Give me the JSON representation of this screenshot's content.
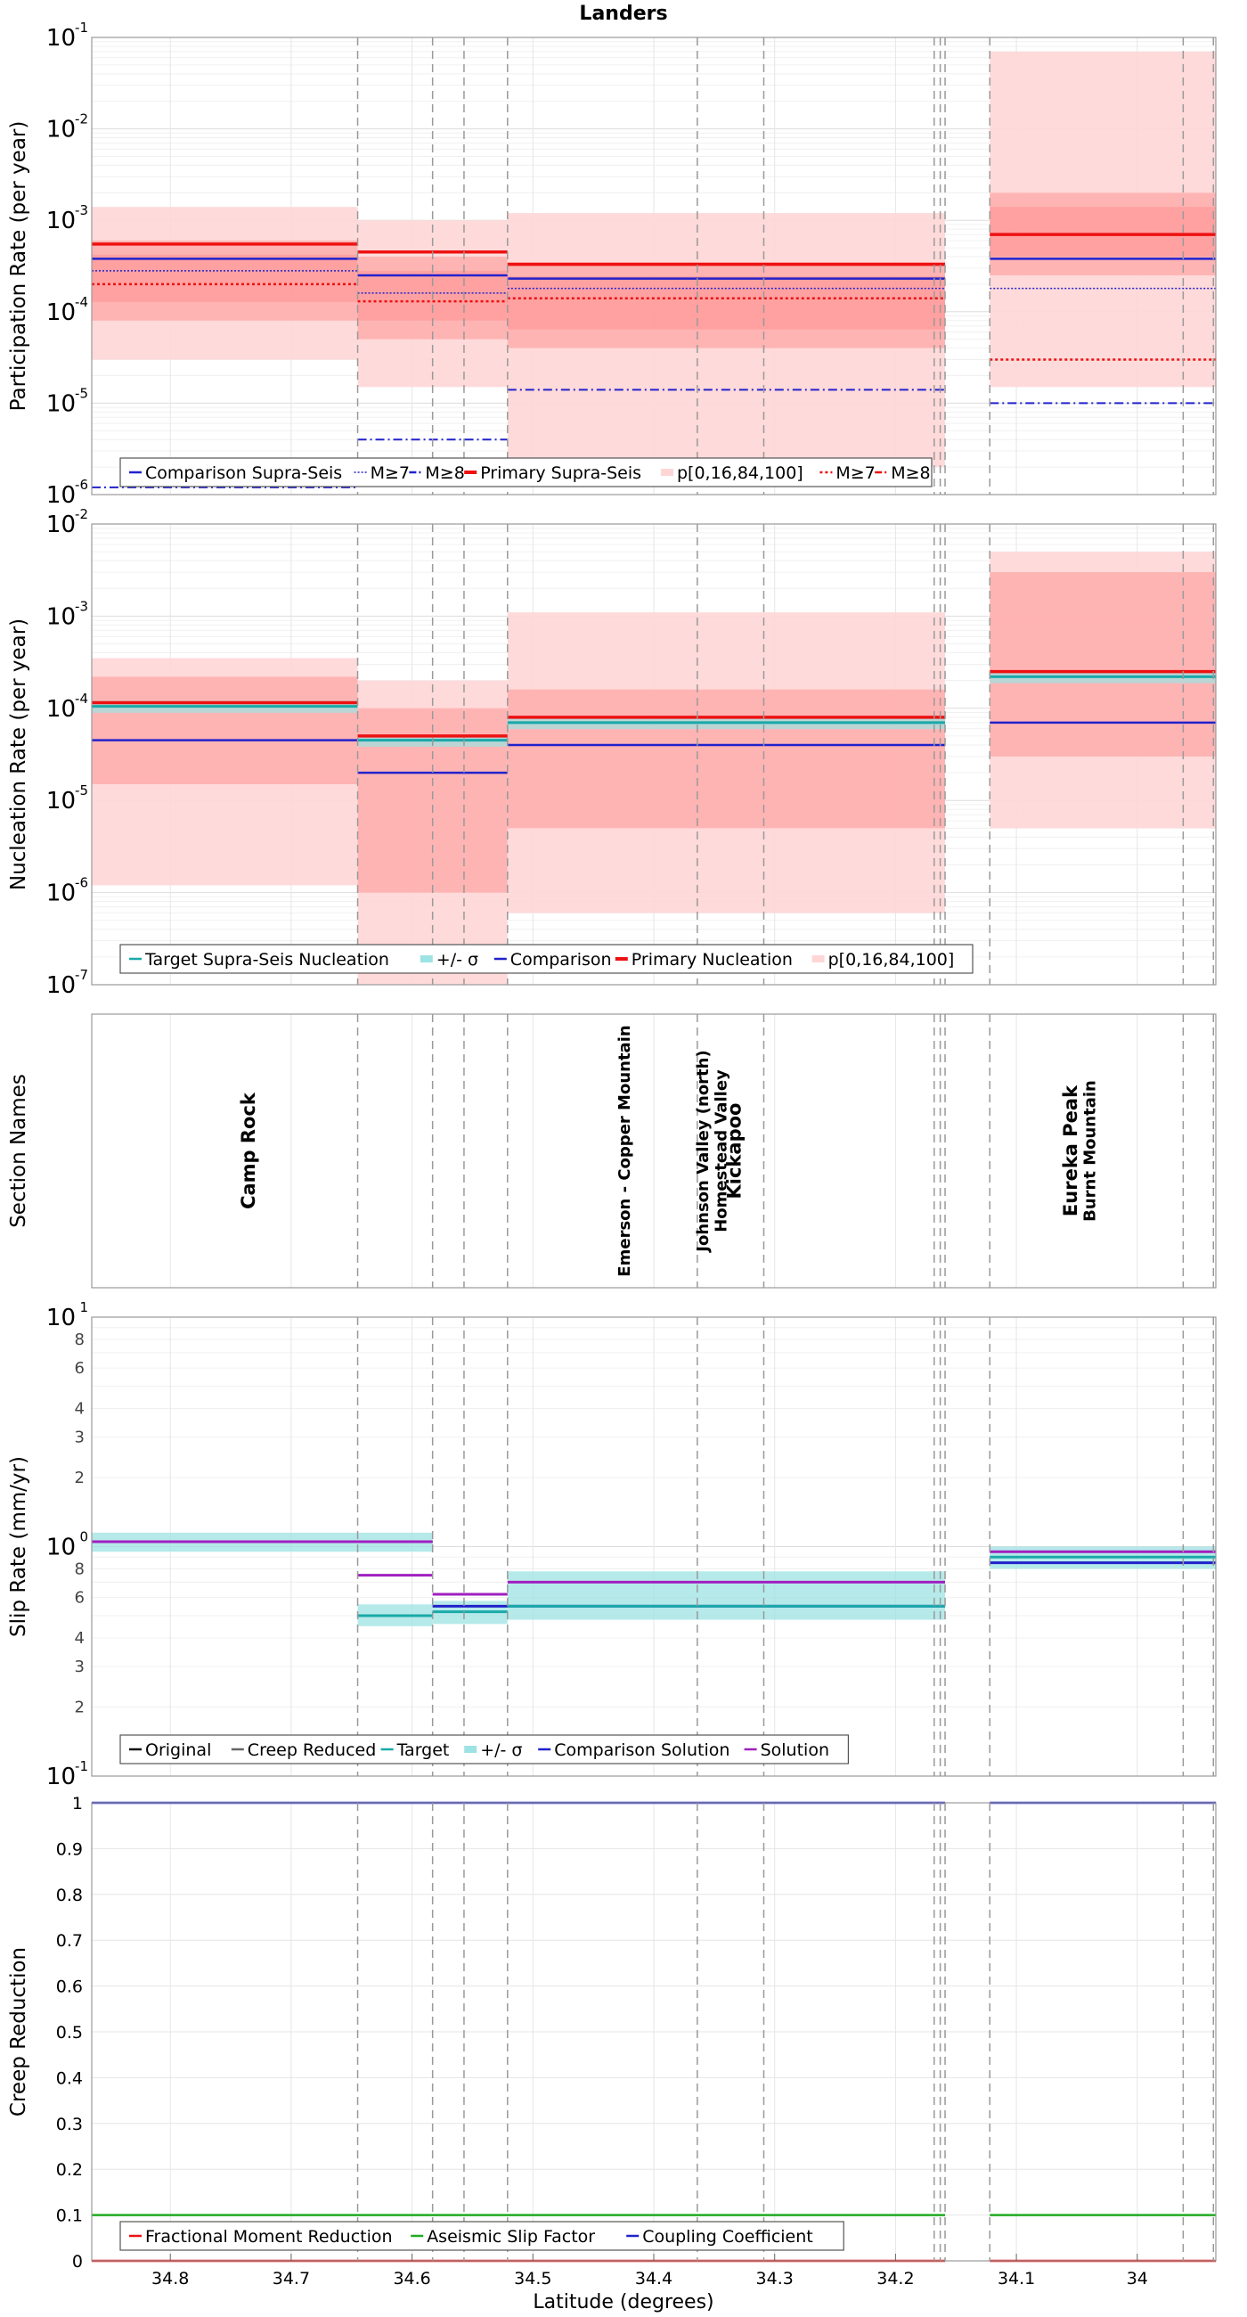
{
  "title": "Landers",
  "x_axis": {
    "label": "Latitude (degrees)",
    "range": [
      34.865,
      33.935
    ],
    "ticks": [
      "34.8",
      "34.7",
      "34.6",
      "34.5",
      "34.4",
      "34.3",
      "34.2",
      "34.1",
      "34"
    ],
    "tick_values": [
      34.8,
      34.7,
      34.6,
      34.5,
      34.4,
      34.3,
      34.2,
      34.1,
      34.0
    ]
  },
  "section_boundaries": [
    34.645,
    34.583,
    34.557,
    34.521,
    34.364,
    34.309,
    34.168,
    34.163,
    34.159,
    34.122,
    33.962,
    33.937
  ],
  "section_names": [
    {
      "name": "Camp Rock",
      "lat": 34.73
    },
    {
      "name": "Emerson - Copper Mountain",
      "lat": 34.42
    },
    {
      "name": "Johnson Valley (north)",
      "lat": 34.355
    },
    {
      "name": "Homestead Valley",
      "lat": 34.34
    },
    {
      "name": "Kickapoo",
      "lat": 34.328
    },
    {
      "name": "Eureka Peak",
      "lat": 34.05
    },
    {
      "name": "Burnt Mountain",
      "lat": 34.035
    }
  ],
  "panel_labels": {
    "participation": "Participation Rate (per year)",
    "nucleation": "Nucleation Rate (per year)",
    "sections": "Section Names",
    "slip": "Slip Rate (mm/yr)",
    "creep": "Creep Reduction"
  },
  "colors": {
    "comparison": "#2222cc",
    "primary": "#ee1111",
    "band_light": "#ffd6d6",
    "band_mid": "#ffaaaa",
    "band_dark": "#ff7f7f",
    "target": "#1aa9a9",
    "target_band": "#9ee3e3",
    "solution": "#a020c0",
    "original": "#111111",
    "creep_reduced": "#666666",
    "aseismic": "#22aa22",
    "coupling": "#2222cc"
  },
  "legends": {
    "participation": [
      "Comparison Supra-Seis",
      "M≥7",
      "M≥8",
      "Primary Supra-Seis",
      "p[0,16,84,100]",
      "M≥7",
      "M≥8"
    ],
    "nucleation": [
      "Target Supra-Seis Nucleation",
      "+/- σ",
      "Comparison",
      "Primary Nucleation",
      "p[0,16,84,100]"
    ],
    "slip": [
      "Original",
      "Creep Reduced",
      "Target",
      "+/- σ",
      "Comparison Solution",
      "Solution"
    ],
    "creep": [
      "Fractional Moment Reduction",
      "Aseismic Slip Factor",
      "Coupling Coefficient"
    ]
  },
  "chart_data": [
    {
      "type": "line",
      "title": "Landers",
      "ylabel": "Participation Rate (per year)",
      "yscale": "log",
      "ylim": [
        1e-06,
        0.1
      ],
      "y_ticks": [
        {
          "base": "10",
          "exp": "-1"
        },
        {
          "base": "10",
          "exp": "-2"
        },
        {
          "base": "10",
          "exp": "-3"
        },
        {
          "base": "10",
          "exp": "-4"
        },
        {
          "base": "10",
          "exp": "-5"
        },
        {
          "base": "10",
          "exp": "-6"
        }
      ],
      "y_tick_values": [
        0.1,
        0.01,
        0.001,
        0.0001,
        1e-05,
        1e-06
      ],
      "segments": [
        {
          "x0": 34.865,
          "x1": 34.645,
          "p0": 3e-05,
          "p16": 8e-05,
          "p84": 0.0006,
          "p100": 0.0014,
          "primary": 0.00055,
          "comparison": 0.00038,
          "comp_m7": 0.00028,
          "comp_m8": 1.2e-06,
          "prim_m7": 0.0002
        },
        {
          "x0": 34.645,
          "x1": 34.521,
          "p0": 1.5e-05,
          "p16": 5e-05,
          "p84": 0.0004,
          "p100": 0.001,
          "primary": 0.00045,
          "comparison": 0.00025,
          "comp_m7": 0.00016,
          "comp_m8": 4e-06,
          "prim_m7": 0.00013
        },
        {
          "x0": 34.521,
          "x1": 34.159,
          "p0": 2e-06,
          "p16": 4e-05,
          "p84": 0.00035,
          "p100": 0.0012,
          "primary": 0.00033,
          "comparison": 0.00023,
          "comp_m7": 0.00018,
          "comp_m8": 1.4e-05,
          "prim_m7": 0.00014
        },
        {
          "x0": 34.122,
          "x1": 33.935,
          "p0": 1.5e-05,
          "p16": 0.00025,
          "p84": 0.002,
          "p100": 0.07,
          "primary": 0.0007,
          "comparison": 0.00038,
          "comp_m7": 0.00018,
          "comp_m8": 1e-05,
          "prim_m7": 3e-05
        }
      ]
    },
    {
      "type": "line",
      "ylabel": "Nucleation Rate (per year)",
      "yscale": "log",
      "ylim": [
        1e-07,
        0.01
      ],
      "y_ticks": [
        {
          "base": "10",
          "exp": "-2"
        },
        {
          "base": "10",
          "exp": "-3"
        },
        {
          "base": "10",
          "exp": "-4"
        },
        {
          "base": "10",
          "exp": "-5"
        },
        {
          "base": "10",
          "exp": "-6"
        },
        {
          "base": "10",
          "exp": "-7"
        }
      ],
      "y_tick_values": [
        0.01,
        0.001,
        0.0001,
        1e-05,
        1e-06,
        1e-07
      ],
      "segments": [
        {
          "x0": 34.865,
          "x1": 34.645,
          "p0": 1.2e-06,
          "p16": 1.5e-05,
          "p84": 0.00022,
          "p100": 0.00035,
          "primary": 0.000115,
          "target": 0.000105,
          "comparison": 4.5e-05
        },
        {
          "x0": 34.645,
          "x1": 34.521,
          "p0": 1e-07,
          "p16": 1e-06,
          "p84": 0.0001,
          "p100": 0.0002,
          "primary": 5e-05,
          "target": 4.5e-05,
          "comparison": 2e-05
        },
        {
          "x0": 34.521,
          "x1": 34.159,
          "p0": 6e-07,
          "p16": 5e-06,
          "p84": 0.00016,
          "p100": 0.0011,
          "primary": 8e-05,
          "target": 7e-05,
          "comparison": 4e-05
        },
        {
          "x0": 34.122,
          "x1": 33.935,
          "p0": 5e-06,
          "p16": 3e-05,
          "p84": 0.003,
          "p100": 0.005,
          "primary": 0.00025,
          "target": 0.00022,
          "comparison": 7e-05
        }
      ]
    },
    {
      "type": "line",
      "ylabel": "Slip Rate (mm/yr)",
      "yscale": "log",
      "ylim": [
        0.1,
        10
      ],
      "y_ticks": [
        {
          "base": "10",
          "exp": "1"
        },
        {
          "base": "8",
          "exp": ""
        },
        {
          "base": "6",
          "exp": ""
        },
        {
          "base": "4",
          "exp": ""
        },
        {
          "base": "3",
          "exp": ""
        },
        {
          "base": "2",
          "exp": ""
        },
        {
          "base": "10",
          "exp": "0"
        },
        {
          "base": "8",
          "exp": ""
        },
        {
          "base": "6",
          "exp": ""
        },
        {
          "base": "4",
          "exp": ""
        },
        {
          "base": "3",
          "exp": ""
        },
        {
          "base": "2",
          "exp": ""
        },
        {
          "base": "10",
          "exp": "-1"
        }
      ],
      "y_tick_values": [
        10,
        8,
        6,
        4,
        3,
        2,
        1,
        0.8,
        0.6,
        0.4,
        0.3,
        0.2,
        0.1
      ],
      "segments": [
        {
          "x0": 34.865,
          "x1": 34.583,
          "target": 1.05,
          "sigma_lo": 0.95,
          "sigma_hi": 1.15,
          "solution": 1.05,
          "comparison": 1.05
        },
        {
          "x0": 34.645,
          "x1": 34.583,
          "target": 0.5,
          "sigma_lo": 0.45,
          "sigma_hi": 0.56,
          "solution": 0.75,
          "comparison": 0.5
        },
        {
          "x0": 34.583,
          "x1": 34.521,
          "target": 0.52,
          "sigma_lo": 0.46,
          "sigma_hi": 0.58,
          "solution": 0.62,
          "comparison": 0.55
        },
        {
          "x0": 34.521,
          "x1": 34.159,
          "target": 0.55,
          "sigma_lo": 0.48,
          "sigma_hi": 0.78,
          "solution": 0.7,
          "comparison": 0.55
        },
        {
          "x0": 34.122,
          "x1": 33.935,
          "target": 0.9,
          "sigma_lo": 0.8,
          "sigma_hi": 1.0,
          "solution": 0.95,
          "comparison": 0.85
        }
      ]
    },
    {
      "type": "line",
      "ylabel": "Creep Reduction",
      "ylim": [
        0,
        1
      ],
      "y_ticks": [
        "1",
        "0.9",
        "0.8",
        "0.7",
        "0.6",
        "0.5",
        "0.4",
        "0.3",
        "0.2",
        "0.1",
        "0"
      ],
      "y_tick_values": [
        1,
        0.9,
        0.8,
        0.7,
        0.6,
        0.5,
        0.4,
        0.3,
        0.2,
        0.1,
        0
      ],
      "series": [
        {
          "name": "Fractional Moment Reduction",
          "value": 0.0
        },
        {
          "name": "Aseismic Slip Factor",
          "value": 0.1
        },
        {
          "name": "Coupling Coefficient",
          "value": 1.0
        }
      ],
      "gaps": [
        [
          34.159,
          34.122
        ]
      ]
    }
  ]
}
